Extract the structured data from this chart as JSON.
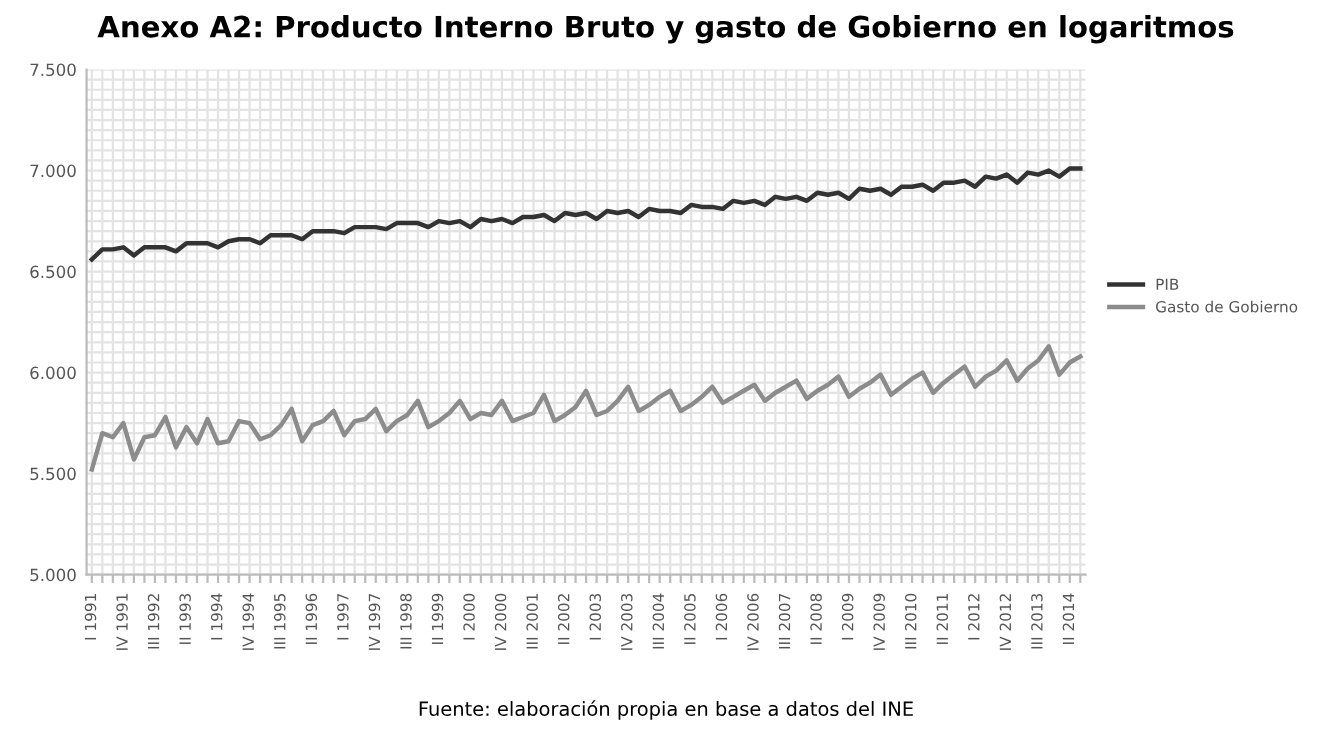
{
  "chart_data": {
    "type": "line",
    "title": "Anexo A2: Producto Interno Bruto y gasto de Gobierno en logaritmos",
    "categories": [
      "I 1991",
      null,
      null,
      "IV 1991",
      null,
      null,
      "III 1992",
      null,
      null,
      "II 1993",
      null,
      null,
      "I 1994",
      null,
      null,
      "IV 1994",
      null,
      null,
      "III 1995",
      null,
      null,
      "II 1996",
      null,
      null,
      "I 1997",
      null,
      null,
      "IV 1997",
      null,
      null,
      "III 1998",
      null,
      null,
      "II 1999",
      null,
      null,
      "I 2000",
      null,
      null,
      "IV 2000",
      null,
      null,
      "III 2001",
      null,
      null,
      "II 2002",
      null,
      null,
      "I 2003",
      null,
      null,
      "IV 2003",
      null,
      null,
      "III 2004",
      null,
      null,
      "II 2005",
      null,
      null,
      "I 2006",
      null,
      null,
      "IV 2006",
      null,
      null,
      "III 2007",
      null,
      null,
      "II 2008",
      null,
      null,
      "I 2009",
      null,
      null,
      "IV 2009",
      null,
      null,
      "III 2010",
      null,
      null,
      "II 2011",
      null,
      null,
      "I 2012",
      null,
      null,
      "IV 2012",
      null,
      null,
      "III 2013",
      null,
      null,
      "II 2014",
      null
    ],
    "series": [
      {
        "name": "PIB",
        "color": "#333333",
        "values": [
          6.56,
          6.61,
          6.61,
          6.62,
          6.58,
          6.62,
          6.62,
          6.62,
          6.6,
          6.64,
          6.64,
          6.64,
          6.62,
          6.65,
          6.66,
          6.66,
          6.64,
          6.68,
          6.68,
          6.68,
          6.66,
          6.7,
          6.7,
          6.7,
          6.69,
          6.72,
          6.72,
          6.72,
          6.71,
          6.74,
          6.74,
          6.74,
          6.72,
          6.75,
          6.74,
          6.75,
          6.72,
          6.76,
          6.75,
          6.76,
          6.74,
          6.77,
          6.77,
          6.78,
          6.75,
          6.79,
          6.78,
          6.79,
          6.76,
          6.8,
          6.79,
          6.8,
          6.77,
          6.81,
          6.8,
          6.8,
          6.79,
          6.83,
          6.82,
          6.82,
          6.81,
          6.85,
          6.84,
          6.85,
          6.83,
          6.87,
          6.86,
          6.87,
          6.85,
          6.89,
          6.88,
          6.89,
          6.86,
          6.91,
          6.9,
          6.91,
          6.88,
          6.92,
          6.92,
          6.93,
          6.9,
          6.94,
          6.94,
          6.95,
          6.92,
          6.97,
          6.96,
          6.98,
          6.94,
          6.99,
          6.98,
          7.0,
          6.97,
          7.01,
          7.01
        ]
      },
      {
        "name": "Gasto de Gobierno",
        "color": "#8c8c8c",
        "values": [
          5.52,
          5.7,
          5.68,
          5.75,
          5.57,
          5.68,
          5.69,
          5.78,
          5.63,
          5.73,
          5.65,
          5.77,
          5.65,
          5.66,
          5.76,
          5.75,
          5.67,
          5.69,
          5.74,
          5.82,
          5.66,
          5.74,
          5.76,
          5.81,
          5.69,
          5.76,
          5.77,
          5.82,
          5.71,
          5.76,
          5.79,
          5.86,
          5.73,
          5.76,
          5.8,
          5.86,
          5.77,
          5.8,
          5.79,
          5.86,
          5.76,
          5.78,
          5.8,
          5.89,
          5.76,
          5.79,
          5.83,
          5.91,
          5.79,
          5.81,
          5.86,
          5.93,
          5.81,
          5.84,
          5.88,
          5.91,
          5.81,
          5.84,
          5.88,
          5.93,
          5.85,
          5.88,
          5.91,
          5.94,
          5.86,
          5.9,
          5.93,
          5.96,
          5.87,
          5.91,
          5.94,
          5.98,
          5.88,
          5.92,
          5.95,
          5.99,
          5.89,
          5.93,
          5.97,
          6.0,
          5.9,
          5.95,
          5.99,
          6.03,
          5.93,
          5.98,
          6.01,
          6.06,
          5.96,
          6.02,
          6.06,
          6.13,
          5.99,
          6.05,
          6.08
        ]
      }
    ],
    "ylim": [
      5.0,
      7.5
    ],
    "yticks": [
      {
        "value": 5.0,
        "label": "5.000"
      },
      {
        "value": 5.05,
        "label": null
      },
      {
        "value": 5.1,
        "label": null
      },
      {
        "value": 5.15,
        "label": null
      },
      {
        "value": 5.2,
        "label": null
      },
      {
        "value": 5.25,
        "label": null
      },
      {
        "value": 5.3,
        "label": null
      },
      {
        "value": 5.35,
        "label": null
      },
      {
        "value": 5.4,
        "label": null
      },
      {
        "value": 5.45,
        "label": null
      },
      {
        "value": 5.5,
        "label": "5.500"
      },
      {
        "value": 5.55,
        "label": null
      },
      {
        "value": 5.6,
        "label": null
      },
      {
        "value": 5.65,
        "label": null
      },
      {
        "value": 5.7,
        "label": null
      },
      {
        "value": 5.75,
        "label": null
      },
      {
        "value": 5.8,
        "label": null
      },
      {
        "value": 5.85,
        "label": null
      },
      {
        "value": 5.9,
        "label": null
      },
      {
        "value": 5.95,
        "label": null
      },
      {
        "value": 6.0,
        "label": "6.000"
      },
      {
        "value": 6.05,
        "label": null
      },
      {
        "value": 6.1,
        "label": null
      },
      {
        "value": 6.15,
        "label": null
      },
      {
        "value": 6.2,
        "label": null
      },
      {
        "value": 6.25,
        "label": null
      },
      {
        "value": 6.3,
        "label": null
      },
      {
        "value": 6.35,
        "label": null
      },
      {
        "value": 6.4,
        "label": null
      },
      {
        "value": 6.45,
        "label": null
      },
      {
        "value": 6.5,
        "label": "6.500"
      },
      {
        "value": 6.55,
        "label": null
      },
      {
        "value": 6.6,
        "label": null
      },
      {
        "value": 6.65,
        "label": null
      },
      {
        "value": 6.7,
        "label": null
      },
      {
        "value": 6.75,
        "label": null
      },
      {
        "value": 6.8,
        "label": null
      },
      {
        "value": 6.85,
        "label": null
      },
      {
        "value": 6.9,
        "label": null
      },
      {
        "value": 6.95,
        "label": null
      },
      {
        "value": 7.0,
        "label": "7.000"
      },
      {
        "value": 7.05,
        "label": null
      },
      {
        "value": 7.1,
        "label": null
      },
      {
        "value": 7.15,
        "label": null
      },
      {
        "value": 7.2,
        "label": null
      },
      {
        "value": 7.25,
        "label": null
      },
      {
        "value": 7.3,
        "label": null
      },
      {
        "value": 7.35,
        "label": null
      },
      {
        "value": 7.4,
        "label": null
      },
      {
        "value": 7.45,
        "label": null
      },
      {
        "value": 7.5,
        "label": "7.500"
      }
    ],
    "grid": true,
    "legend": "right",
    "marker": "none",
    "line_style": "solid",
    "annotations": [
      "Fuente: elaboración propia en base a datos del INE"
    ]
  }
}
